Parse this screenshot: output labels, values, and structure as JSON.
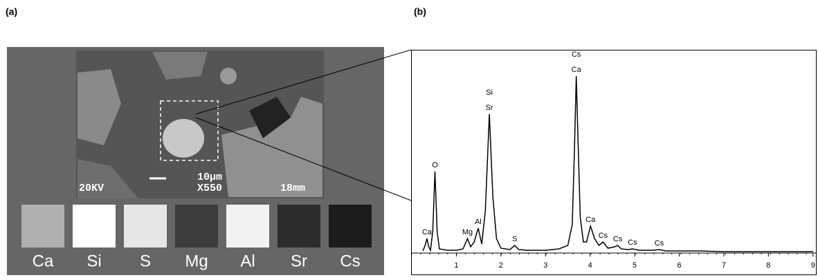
{
  "panels": {
    "a": "(a)",
    "b": "(b)"
  },
  "sem": {
    "scale_bar": "10µm",
    "voltage": "20KV",
    "magnification": "X550",
    "distance": "18mm"
  },
  "maps": [
    {
      "label": "Ca",
      "color": "#b0b0b0"
    },
    {
      "label": "Si",
      "color": "#ffffff"
    },
    {
      "label": "S",
      "color": "#e6e6e6"
    },
    {
      "label": "Mg",
      "color": "#3c3c3c"
    },
    {
      "label": "Al",
      "color": "#f2f2f2"
    },
    {
      "label": "Sr",
      "color": "#2c2c2c"
    },
    {
      "label": "Cs",
      "color": "#1c1c1c"
    }
  ],
  "chart_data": {
    "type": "line",
    "color": "#000000",
    "x": [
      0.25,
      0.3,
      0.34,
      0.38,
      0.42,
      0.47,
      0.52,
      0.57,
      0.62,
      0.8,
      1.0,
      1.15,
      1.25,
      1.32,
      1.4,
      1.49,
      1.57,
      1.65,
      1.74,
      1.82,
      1.9,
      2.0,
      2.2,
      2.31,
      2.4,
      2.6,
      3.0,
      3.3,
      3.5,
      3.6,
      3.65,
      3.69,
      3.73,
      3.78,
      3.85,
      3.92,
      4.01,
      4.1,
      4.2,
      4.29,
      4.4,
      4.55,
      4.62,
      4.7,
      4.85,
      4.95,
      5.1,
      5.4,
      5.55,
      5.7,
      6.0,
      6.5,
      7.0,
      8.0,
      9.0
    ],
    "values": [
      2,
      10,
      20,
      8,
      3,
      30,
      117,
      30,
      5,
      3,
      3,
      5,
      20,
      8,
      15,
      35,
      12,
      60,
      200,
      80,
      20,
      6,
      4,
      10,
      4,
      3,
      3,
      5,
      10,
      40,
      150,
      255,
      160,
      50,
      15,
      15,
      38,
      20,
      10,
      15,
      6,
      8,
      10,
      5,
      4,
      5,
      3,
      3,
      4,
      2,
      2,
      2,
      1,
      1,
      1
    ],
    "xlim": [
      0,
      9.05
    ],
    "ylim": [
      0,
      270
    ],
    "xticks": [
      1,
      2,
      3,
      4,
      5,
      6,
      7,
      8,
      9
    ],
    "annotations": [
      {
        "x": 0.34,
        "lines": [
          "Ca"
        ]
      },
      {
        "x": 0.52,
        "lines": [
          "O"
        ]
      },
      {
        "x": 1.25,
        "lines": [
          "Mg"
        ]
      },
      {
        "x": 1.49,
        "lines": [
          "Al"
        ]
      },
      {
        "x": 1.74,
        "lines": [
          "Si",
          "Sr"
        ]
      },
      {
        "x": 2.31,
        "lines": [
          "S"
        ]
      },
      {
        "x": 3.69,
        "lines": [
          "Cs",
          "Ca"
        ]
      },
      {
        "x": 4.01,
        "lines": [
          "Ca"
        ]
      },
      {
        "x": 4.29,
        "lines": [
          "Cs"
        ]
      },
      {
        "x": 4.62,
        "lines": [
          "Cs"
        ]
      },
      {
        "x": 4.95,
        "lines": [
          "Cs"
        ]
      },
      {
        "x": 5.55,
        "lines": [
          "Cs"
        ]
      }
    ]
  }
}
